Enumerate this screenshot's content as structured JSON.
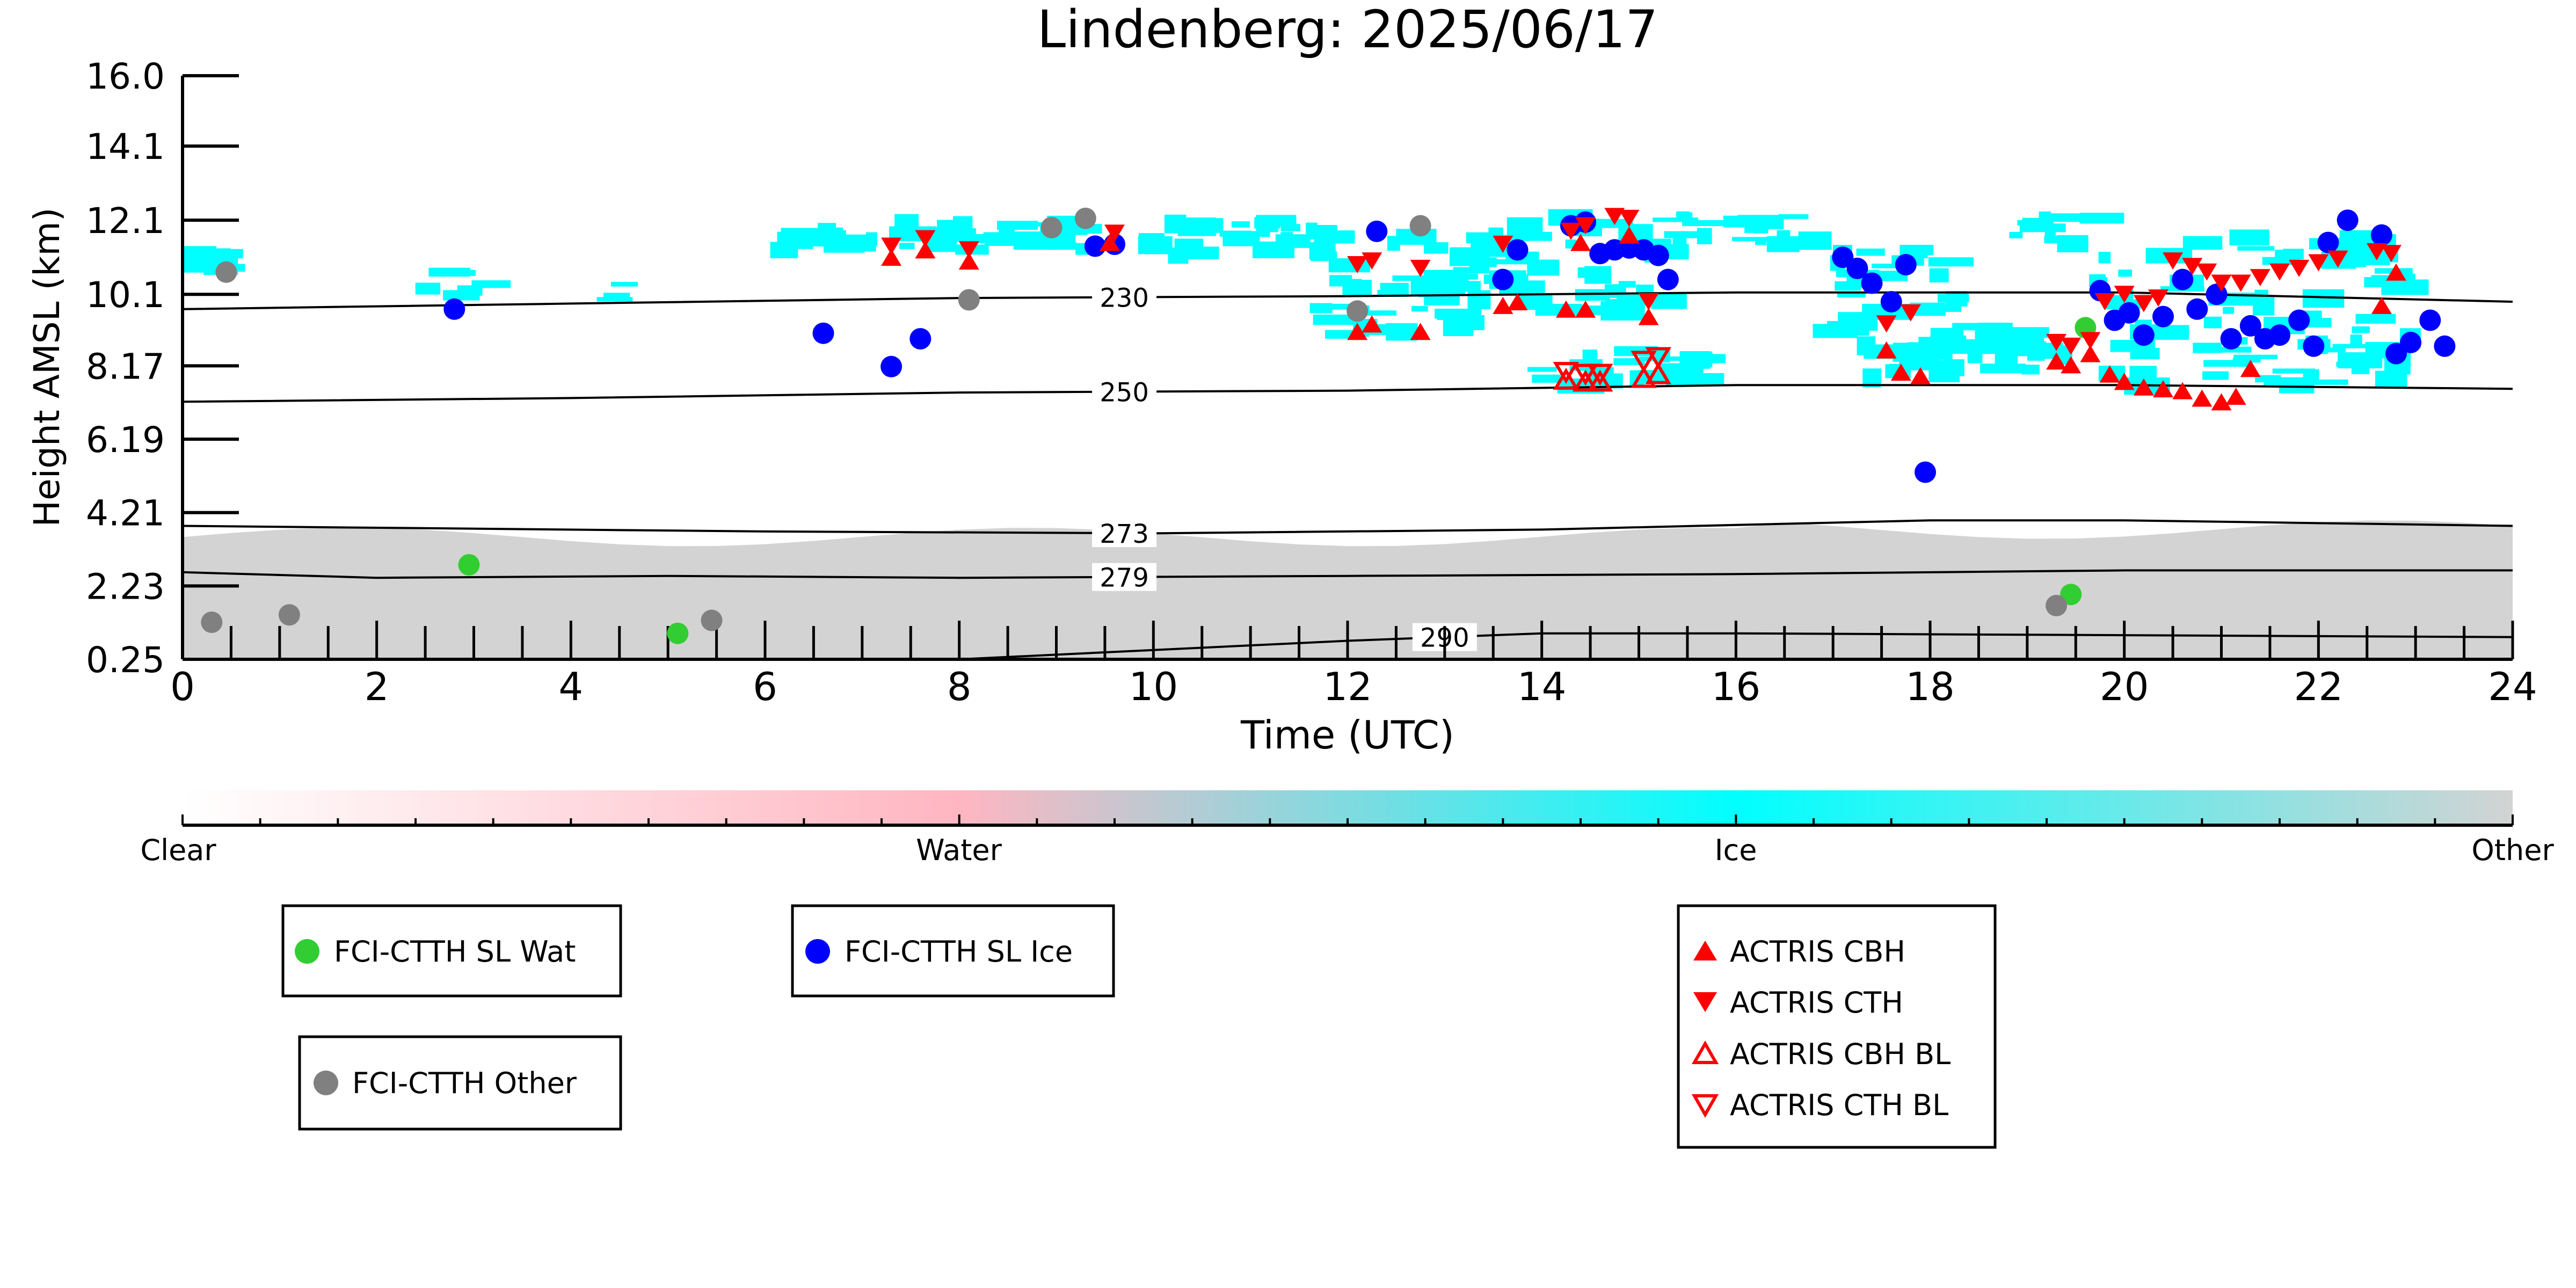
{
  "chart_data": {
    "type": "scatter",
    "title": "Lindenberg: 2025/06/17",
    "xlabel": "Time (UTC)",
    "ylabel": "Height AMSL (km)",
    "xlim": [
      0,
      24
    ],
    "ylim": [
      0.25,
      16.0
    ],
    "x_ticks": [
      0,
      2,
      4,
      6,
      8,
      10,
      12,
      14,
      16,
      18,
      20,
      22,
      24
    ],
    "y_ticks": [
      "0.25",
      "2.23",
      "4.21",
      "6.19",
      "8.17",
      "10.1",
      "12.1",
      "14.1",
      "16.0"
    ],
    "colorbar": {
      "labels": [
        "Clear",
        "Water",
        "Ice",
        "Other"
      ],
      "colors": [
        "#ffffff",
        "#ffb6c1",
        "#00ffff",
        "#d3d3d3"
      ]
    },
    "contours": [
      {
        "label": "230",
        "label_x": 9.7,
        "points": [
          [
            0,
            9.7
          ],
          [
            4,
            9.85
          ],
          [
            8,
            10.0
          ],
          [
            12,
            10.05
          ],
          [
            16,
            10.15
          ],
          [
            20,
            10.15
          ],
          [
            24,
            9.9
          ]
        ]
      },
      {
        "label": "250",
        "label_x": 9.7,
        "points": [
          [
            0,
            7.2
          ],
          [
            4,
            7.3
          ],
          [
            8,
            7.45
          ],
          [
            12,
            7.5
          ],
          [
            16,
            7.65
          ],
          [
            20,
            7.65
          ],
          [
            24,
            7.55
          ]
        ]
      },
      {
        "label": "273",
        "label_x": 9.7,
        "points": [
          [
            0,
            3.85
          ],
          [
            6,
            3.7
          ],
          [
            10,
            3.65
          ],
          [
            14,
            3.75
          ],
          [
            18,
            4.0
          ],
          [
            20,
            4.0
          ],
          [
            24,
            3.85
          ]
        ]
      },
      {
        "label": "279",
        "label_x": 9.7,
        "points": [
          [
            0,
            2.6
          ],
          [
            2,
            2.45
          ],
          [
            5,
            2.5
          ],
          [
            8,
            2.45
          ],
          [
            12,
            2.5
          ],
          [
            16,
            2.55
          ],
          [
            20,
            2.65
          ],
          [
            24,
            2.65
          ]
        ]
      },
      {
        "label": "290",
        "label_x": 13.0,
        "points": [
          [
            8,
            0.25
          ],
          [
            10,
            0.5
          ],
          [
            12,
            0.75
          ],
          [
            14,
            0.95
          ],
          [
            16,
            0.95
          ],
          [
            20,
            0.9
          ],
          [
            24,
            0.85
          ]
        ]
      }
    ],
    "series": [
      {
        "name": "FCI-CTTH SL Wat",
        "marker": "circle",
        "color": "#32cd32",
        "points": [
          [
            2.95,
            2.8
          ],
          [
            5.1,
            0.95
          ],
          [
            19.45,
            2.0
          ],
          [
            19.6,
            9.2
          ]
        ]
      },
      {
        "name": "FCI-CTTH SL Ice",
        "marker": "circle",
        "color": "#0000ff",
        "points": [
          [
            2.8,
            9.7
          ],
          [
            6.6,
            9.05
          ],
          [
            7.3,
            8.15
          ],
          [
            7.6,
            8.9
          ],
          [
            9.4,
            11.4
          ],
          [
            9.6,
            11.45
          ],
          [
            12.3,
            11.8
          ],
          [
            13.6,
            10.5
          ],
          [
            13.75,
            11.3
          ],
          [
            14.3,
            11.95
          ],
          [
            14.45,
            12.05
          ],
          [
            14.6,
            11.2
          ],
          [
            14.75,
            11.3
          ],
          [
            14.9,
            11.35
          ],
          [
            15.05,
            11.3
          ],
          [
            15.2,
            11.15
          ],
          [
            15.3,
            10.5
          ],
          [
            17.1,
            11.1
          ],
          [
            17.25,
            10.8
          ],
          [
            17.4,
            10.4
          ],
          [
            17.6,
            9.9
          ],
          [
            17.75,
            10.9
          ],
          [
            17.95,
            5.3
          ],
          [
            19.75,
            10.2
          ],
          [
            19.9,
            9.4
          ],
          [
            20.05,
            9.6
          ],
          [
            20.2,
            9.0
          ],
          [
            20.4,
            9.5
          ],
          [
            20.6,
            10.5
          ],
          [
            20.75,
            9.7
          ],
          [
            20.95,
            10.1
          ],
          [
            21.1,
            8.9
          ],
          [
            21.3,
            9.25
          ],
          [
            21.45,
            8.9
          ],
          [
            21.6,
            9.0
          ],
          [
            21.8,
            9.4
          ],
          [
            21.95,
            8.7
          ],
          [
            22.1,
            11.5
          ],
          [
            22.3,
            12.1
          ],
          [
            22.65,
            11.7
          ],
          [
            22.8,
            8.5
          ],
          [
            22.95,
            8.8
          ],
          [
            23.15,
            9.4
          ],
          [
            23.3,
            8.7
          ]
        ]
      },
      {
        "name": "FCI-CTTH Other",
        "marker": "circle",
        "color": "#808080",
        "points": [
          [
            0.3,
            1.25
          ],
          [
            0.45,
            10.7
          ],
          [
            1.1,
            1.45
          ],
          [
            5.45,
            1.3
          ],
          [
            8.1,
            9.95
          ],
          [
            8.95,
            11.9
          ],
          [
            9.3,
            12.15
          ],
          [
            12.1,
            9.65
          ],
          [
            12.75,
            11.95
          ],
          [
            19.3,
            1.7
          ]
        ]
      },
      {
        "name": "ACTRIS CBH",
        "marker": "triangle-up",
        "color": "#ff0000",
        "filled": true,
        "points": [
          [
            7.3,
            11.1
          ],
          [
            7.65,
            11.3
          ],
          [
            8.1,
            11.0
          ],
          [
            9.55,
            11.5
          ],
          [
            12.1,
            9.1
          ],
          [
            12.25,
            9.3
          ],
          [
            12.75,
            9.1
          ],
          [
            13.6,
            9.8
          ],
          [
            13.75,
            9.9
          ],
          [
            14.25,
            9.7
          ],
          [
            14.45,
            9.7
          ],
          [
            15.1,
            9.5
          ],
          [
            14.4,
            11.5
          ],
          [
            14.9,
            11.7
          ],
          [
            17.55,
            8.6
          ],
          [
            17.7,
            8.0
          ],
          [
            17.9,
            7.9
          ],
          [
            19.3,
            8.3
          ],
          [
            19.45,
            8.2
          ],
          [
            19.65,
            8.5
          ],
          [
            19.85,
            7.95
          ],
          [
            20.0,
            7.75
          ],
          [
            20.2,
            7.6
          ],
          [
            20.4,
            7.55
          ],
          [
            20.6,
            7.5
          ],
          [
            20.8,
            7.3
          ],
          [
            21.0,
            7.2
          ],
          [
            21.15,
            7.35
          ],
          [
            21.3,
            8.1
          ],
          [
            22.65,
            9.8
          ],
          [
            22.8,
            10.7
          ]
        ]
      },
      {
        "name": "ACTRIS CTH",
        "marker": "triangle-down",
        "color": "#ff0000",
        "filled": true,
        "points": [
          [
            7.3,
            11.4
          ],
          [
            7.65,
            11.6
          ],
          [
            8.1,
            11.3
          ],
          [
            9.6,
            11.75
          ],
          [
            12.1,
            10.9
          ],
          [
            12.25,
            11.0
          ],
          [
            12.75,
            10.8
          ],
          [
            13.6,
            11.45
          ],
          [
            14.3,
            11.8
          ],
          [
            14.45,
            11.95
          ],
          [
            14.75,
            12.2
          ],
          [
            14.9,
            12.15
          ],
          [
            15.1,
            9.9
          ],
          [
            17.55,
            9.3
          ],
          [
            17.8,
            9.6
          ],
          [
            19.3,
            8.8
          ],
          [
            19.45,
            8.7
          ],
          [
            19.65,
            8.85
          ],
          [
            19.8,
            9.9
          ],
          [
            20.0,
            10.1
          ],
          [
            20.2,
            9.85
          ],
          [
            20.35,
            10.0
          ],
          [
            20.5,
            11.0
          ],
          [
            20.7,
            10.85
          ],
          [
            20.85,
            10.7
          ],
          [
            21.0,
            10.4
          ],
          [
            21.2,
            10.4
          ],
          [
            21.4,
            10.55
          ],
          [
            21.6,
            10.7
          ],
          [
            21.8,
            10.8
          ],
          [
            22.0,
            10.95
          ],
          [
            22.2,
            11.05
          ],
          [
            22.6,
            11.25
          ],
          [
            22.75,
            11.2
          ]
        ]
      },
      {
        "name": "ACTRIS CBH BL",
        "marker": "triangle-up",
        "color": "#ff0000",
        "filled": false,
        "points": [
          [
            14.25,
            7.8
          ],
          [
            14.45,
            7.75
          ],
          [
            14.6,
            7.75
          ],
          [
            15.05,
            7.85
          ],
          [
            15.2,
            7.95
          ]
        ]
      },
      {
        "name": "ACTRIS CTH BL",
        "marker": "triangle-down",
        "color": "#ff0000",
        "filled": false,
        "points": [
          [
            14.25,
            8.0
          ],
          [
            14.45,
            7.95
          ],
          [
            14.6,
            7.95
          ],
          [
            15.05,
            8.3
          ],
          [
            15.2,
            8.4
          ]
        ]
      }
    ],
    "legend": [
      {
        "entries": [
          "FCI-CTTH SL Wat"
        ]
      },
      {
        "entries": [
          "FCI-CTTH SL Ice"
        ]
      },
      {
        "entries": [
          "FCI-CTTH Other"
        ]
      },
      {
        "entries": [
          "ACTRIS CBH",
          "ACTRIS CTH",
          "ACTRIS CBH BL",
          "ACTRIS CTH BL"
        ]
      }
    ]
  }
}
